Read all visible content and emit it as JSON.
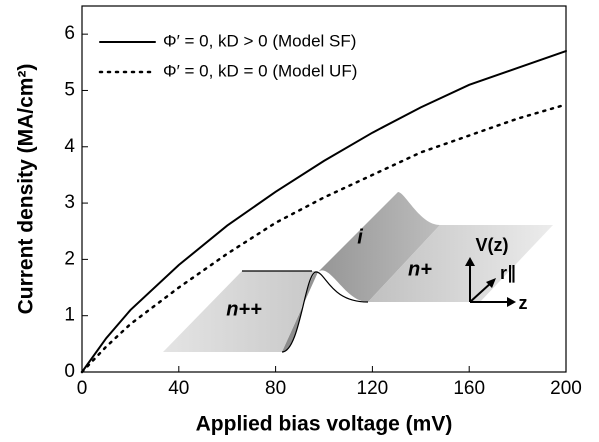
{
  "chart_data": {
    "type": "line",
    "x_label": "Applied bias voltage (mV)",
    "y_label": "Current density (MA/cm²)",
    "x": [
      0,
      10,
      20,
      40,
      60,
      80,
      100,
      120,
      140,
      160,
      180,
      200
    ],
    "series": [
      {
        "name": "Φ′ = 0, kD > 0 (Model SF)",
        "color": "#000000",
        "dash": "solid",
        "values": [
          0,
          0.6,
          1.1,
          1.9,
          2.6,
          3.2,
          3.75,
          4.25,
          4.7,
          5.1,
          5.4,
          5.7
        ]
      },
      {
        "name": "Φ′ = 0, kD = 0 (Model UF)",
        "color": "#000000",
        "dash": "dotted",
        "values": [
          0,
          0.45,
          0.85,
          1.5,
          2.1,
          2.65,
          3.1,
          3.5,
          3.9,
          4.2,
          4.5,
          4.75
        ]
      }
    ],
    "xlim": [
      0,
      200
    ],
    "xticks": [
      0,
      40,
      80,
      120,
      160,
      200
    ],
    "ylim": [
      0,
      6.5
    ],
    "yticks": [
      0,
      1,
      2,
      3,
      4,
      5,
      6
    ],
    "legend": "upper left",
    "inset_labels": [
      "n++",
      "i",
      "n+",
      "V(z)",
      "r∥",
      "z"
    ]
  }
}
